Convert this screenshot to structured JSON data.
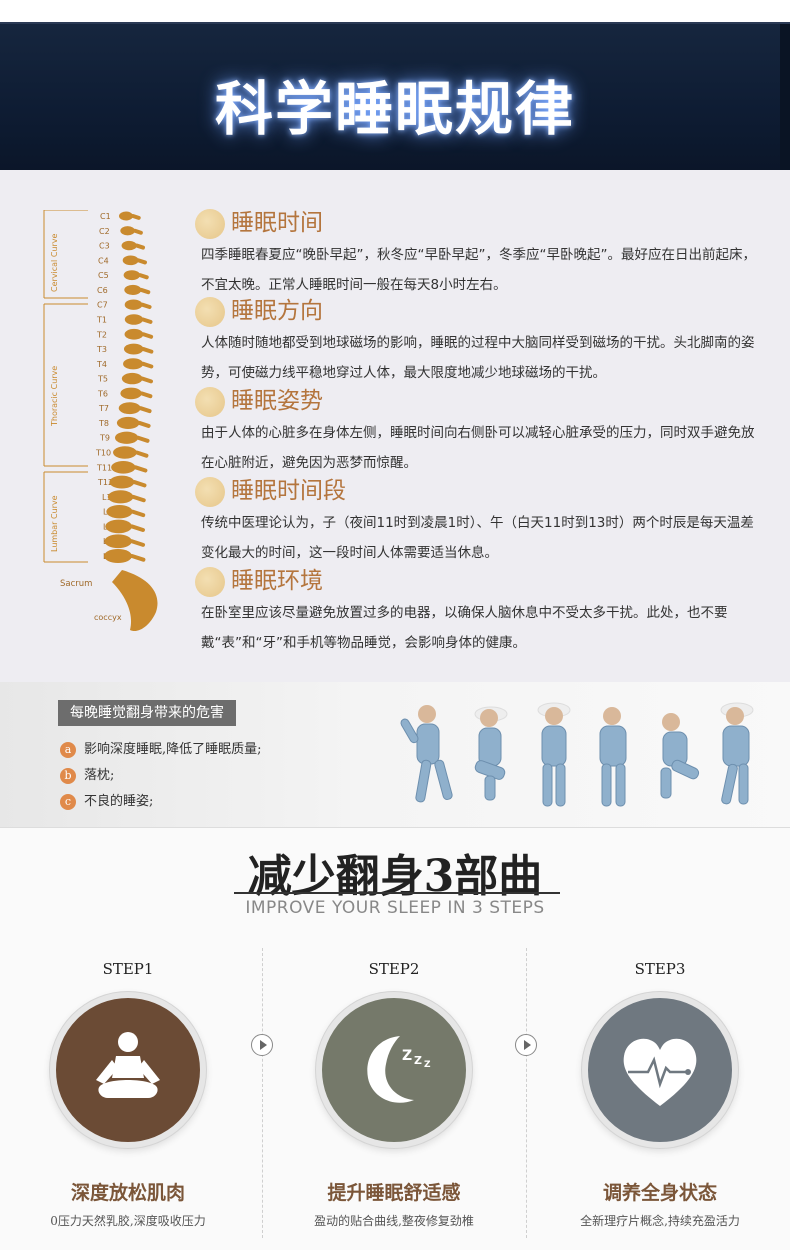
{
  "header": {
    "title": "科学睡眠规律"
  },
  "spine": {
    "curve_labels": [
      "Cervical Curve",
      "Thoracic Curve",
      "Lumbar Curve"
    ],
    "vertebrae": [
      "C1",
      "C2",
      "C3",
      "C4",
      "C5",
      "C6",
      "C7",
      "T1",
      "T2",
      "T3",
      "T4",
      "T5",
      "T6",
      "T7",
      "T8",
      "T9",
      "T10",
      "T11",
      "T12",
      "L1",
      "L2",
      "L3",
      "L4",
      "L5"
    ],
    "sacrum": "Sacrum",
    "coccyx": "coccyx",
    "color": "#c98a2e"
  },
  "rules": [
    {
      "title": "睡眠时间",
      "text": "四季睡眠春夏应“晚卧早起”，秋冬应“早卧早起”，冬季应“早卧晚起”。最好应在日出前起床，不宜太晚。正常人睡眠时间一般在每天8小时左右。"
    },
    {
      "title": "睡眠方向",
      "text": "人体随时随地都受到地球磁场的影响，睡眠的过程中大脑同样受到磁场的干扰。头北脚南的姿势，可使磁力线平稳地穿过人体，最大限度地减少地球磁场的干扰。"
    },
    {
      "title": "睡眠姿势",
      "text": "由于人体的心脏多在身体左侧，睡眠时间向右侧卧可以减轻心脏承受的压力，同时双手避免放在心脏附近，避免因为恶梦而惊醒。"
    },
    {
      "title": "睡眠时间段",
      "text": "传统中医理论认为，子（夜间11时到凌晨1时）、午（白天11时到13时）两个时辰是每天温差变化最大的时间，这一段时间人体需要适当休息。"
    },
    {
      "title": "睡眠环境",
      "text": "在卧室里应该尽量避免放置过多的电器，以确保人脑休息中不受太多干扰。此处，也不要戴“表”和“牙”和手机等物品睡觉，会影响身体的健康。"
    }
  ],
  "harms": {
    "label": "每晚睡觉翻身带来的危害",
    "items": [
      {
        "badge": "a",
        "text": "影响深度睡眠,降低了睡眠质量;"
      },
      {
        "badge": "b",
        "text": "落枕;"
      },
      {
        "badge": "c",
        "text": "不良的睡姿;"
      }
    ]
  },
  "steps_section": {
    "title": "减少翻身3部曲",
    "subtitle": "IMPROVE YOUR SLEEP IN 3 STEPS",
    "steps": [
      {
        "label": "STEP1",
        "name": "深度放松肌肉",
        "desc": "0压力天然乳胶,深度吸收压力",
        "icon": "meditation-icon",
        "color": "#6b4b35"
      },
      {
        "label": "STEP2",
        "name": "提升睡眠舒适感",
        "desc": "盈动的贴合曲线,整夜修复劲椎",
        "icon": "moon-zzz-icon",
        "color": "#75796a"
      },
      {
        "label": "STEP3",
        "name": "调养全身状态",
        "desc": "全新理疗片概念,持续充盈活力",
        "icon": "heartbeat-icon",
        "color": "#6f7880"
      }
    ]
  }
}
